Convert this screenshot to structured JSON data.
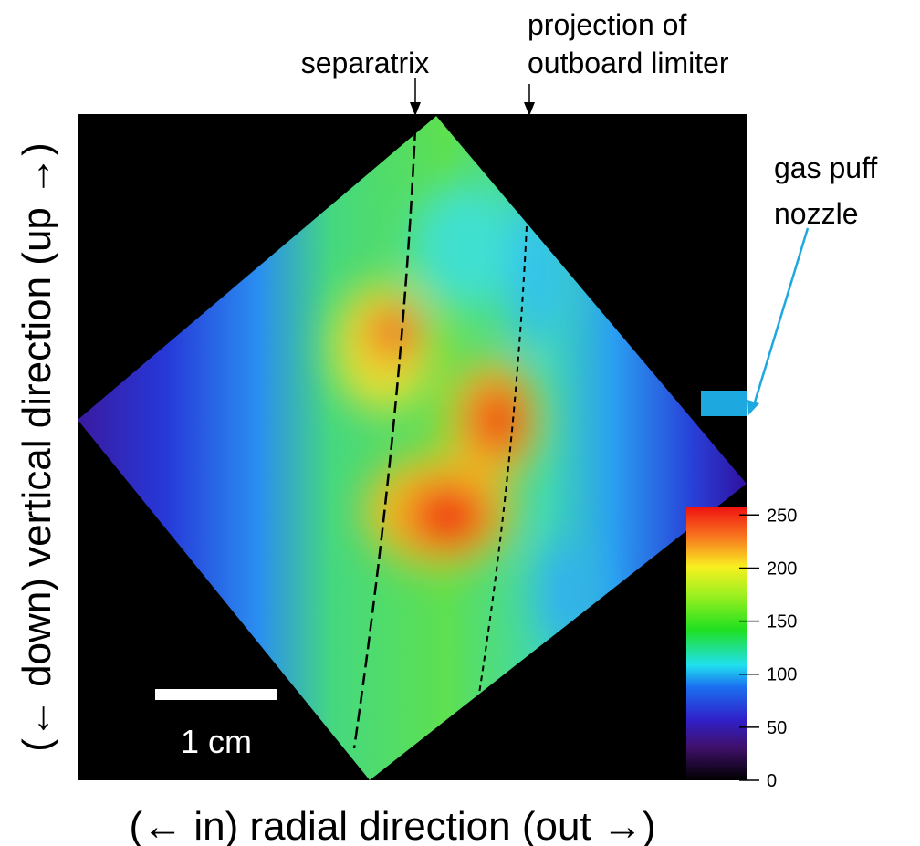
{
  "labels": {
    "separatrix": "separatrix",
    "limiter": [
      "projection of",
      "outboard limiter"
    ],
    "nozzle": [
      "gas puff",
      "nozzle"
    ],
    "scale_bar": "1 cm",
    "x_axis": "(← in) radial direction (out →)",
    "y_axis": "(← down) vertical direction (up →)"
  },
  "colorbar": {
    "lim": [
      0,
      258
    ],
    "ticks": [
      0,
      50,
      100,
      150,
      200,
      250
    ]
  }
}
